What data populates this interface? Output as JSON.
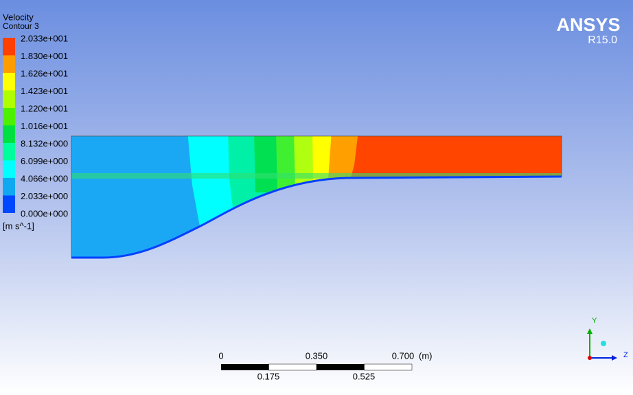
{
  "legend": {
    "title": "Velocity",
    "subtitle": "Contour 3",
    "levels": [
      "2.033e+001",
      "1.830e+001",
      "1.626e+001",
      "1.423e+001",
      "1.220e+001",
      "1.016e+001",
      "8.132e+000",
      "6.099e+000",
      "4.066e+000",
      "2.033e+000",
      "0.000e+000"
    ],
    "unit": "[m s^-1]"
  },
  "logo": {
    "name": "ANSYS",
    "version": "R15.0"
  },
  "scale_bar": {
    "top_labels": [
      "0",
      "0.350",
      "0.700"
    ],
    "unit": "(m)",
    "bottom_labels": [
      "0.175",
      "0.525"
    ]
  },
  "axes": {
    "y": "Y",
    "z": "Z"
  }
}
